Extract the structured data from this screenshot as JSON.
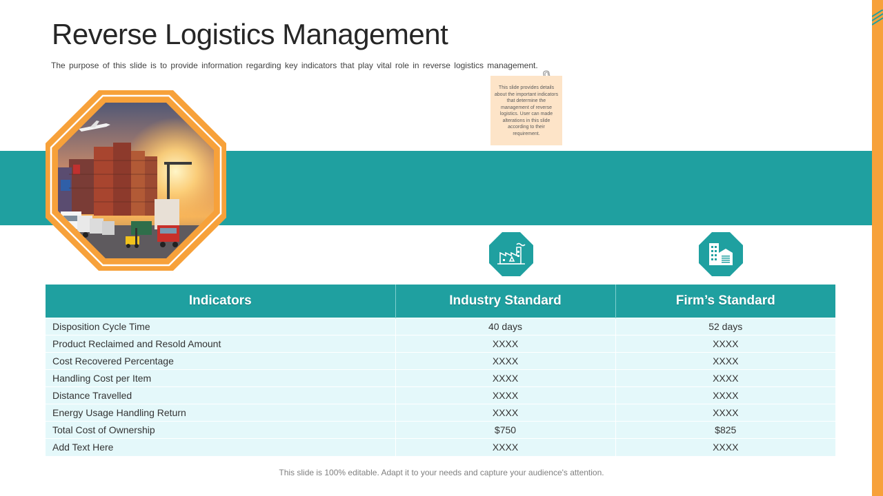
{
  "slide": {
    "title": "Reverse Logistics Management",
    "subtitle": "The purpose of this slide is to provide information regarding key indicators that play vital role in reverse logistics management.",
    "sticky_note": "This slide provides details about the important indicators that determine the management of reverse logistics. User can made alterations in this slide according to their requirement.",
    "footer": "This slide is 100% editable. Adapt it to your needs and capture your audience's attention."
  },
  "colors": {
    "teal": "#1fa0a0",
    "orange": "#f7a13a",
    "row_bg": "#e4f8fa",
    "sticky_bg": "#fde4c8"
  },
  "icons": [
    "factory-icon",
    "office-building-icon",
    "logistics-photo",
    "paperclip-icon"
  ],
  "table": {
    "headers": [
      "Indicators",
      "Industry Standard",
      "Firm’s Standard"
    ],
    "rows": [
      [
        "Disposition Cycle Time",
        "40 days",
        "52 days"
      ],
      [
        "Product Reclaimed and Resold Amount",
        "XXXX",
        "XXXX"
      ],
      [
        "Cost Recovered Percentage",
        "XXXX",
        "XXXX"
      ],
      [
        "Handling Cost per Item",
        "XXXX",
        "XXXX"
      ],
      [
        "Distance Travelled",
        "XXXX",
        "XXXX"
      ],
      [
        "Energy Usage Handling Return",
        "XXXX",
        "XXXX"
      ],
      [
        "Total Cost of Ownership",
        "$750",
        "$825"
      ],
      [
        "Add Text Here",
        "XXXX",
        "XXXX"
      ]
    ]
  }
}
